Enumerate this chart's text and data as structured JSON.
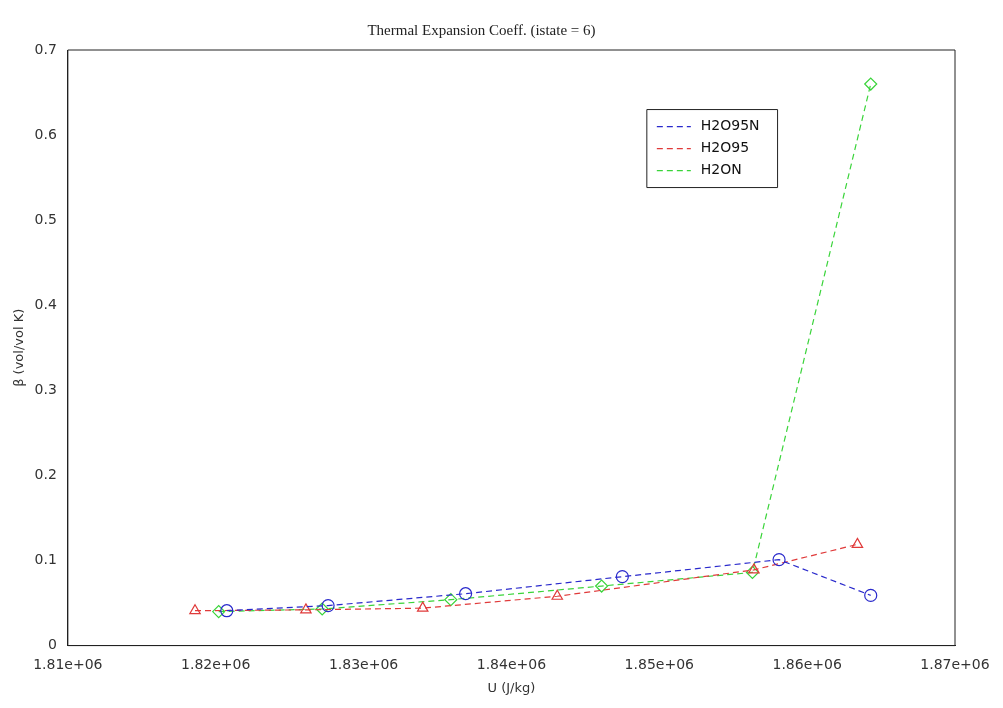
{
  "chart_data": {
    "type": "line",
    "title": "Thermal Expansion Coeff. (istate = 6)",
    "xlabel": "U (J/kg)",
    "ylabel": "β (vol/vol K)",
    "xlim": [
      1810000,
      1870000
    ],
    "xticks": [
      {
        "value": 1810000,
        "label": "1.81e+06"
      },
      {
        "value": 1820000,
        "label": "1.82e+06"
      },
      {
        "value": 1830000,
        "label": "1.83e+06"
      },
      {
        "value": 1840000,
        "label": "1.84e+06"
      },
      {
        "value": 1850000,
        "label": "1.85e+06"
      },
      {
        "value": 1860000,
        "label": "1.86e+06"
      },
      {
        "value": 1870000,
        "label": "1.87e+06"
      }
    ],
    "ylim": [
      0,
      0.7
    ],
    "yticks": [
      0,
      0.1,
      0.2,
      0.3,
      0.4,
      0.5,
      0.6,
      0.7
    ],
    "grid": false,
    "legend": "top right",
    "line_style": "dashed",
    "series": [
      {
        "name": "H2O95N",
        "color": "#2a2acc",
        "marker": "circle",
        "x": [
          1820750,
          1827600,
          1836900,
          1847500,
          1858100,
          1864300
        ],
        "values": [
          0.041,
          0.047,
          0.061,
          0.081,
          0.101,
          0.059
        ]
      },
      {
        "name": "H2O95",
        "color": "#e03a3a",
        "marker": "triangle",
        "x": [
          1818600,
          1826100,
          1834000,
          1843100,
          1856400,
          1863400
        ],
        "values": [
          0.041,
          0.042,
          0.044,
          0.058,
          0.089,
          0.119
        ]
      },
      {
        "name": "H2ON",
        "color": "#3ad43a",
        "marker": "diamond",
        "x": [
          1820200,
          1827200,
          1835900,
          1846100,
          1856300,
          1864300
        ],
        "values": [
          0.04,
          0.043,
          0.054,
          0.07,
          0.086,
          0.66
        ]
      }
    ]
  }
}
